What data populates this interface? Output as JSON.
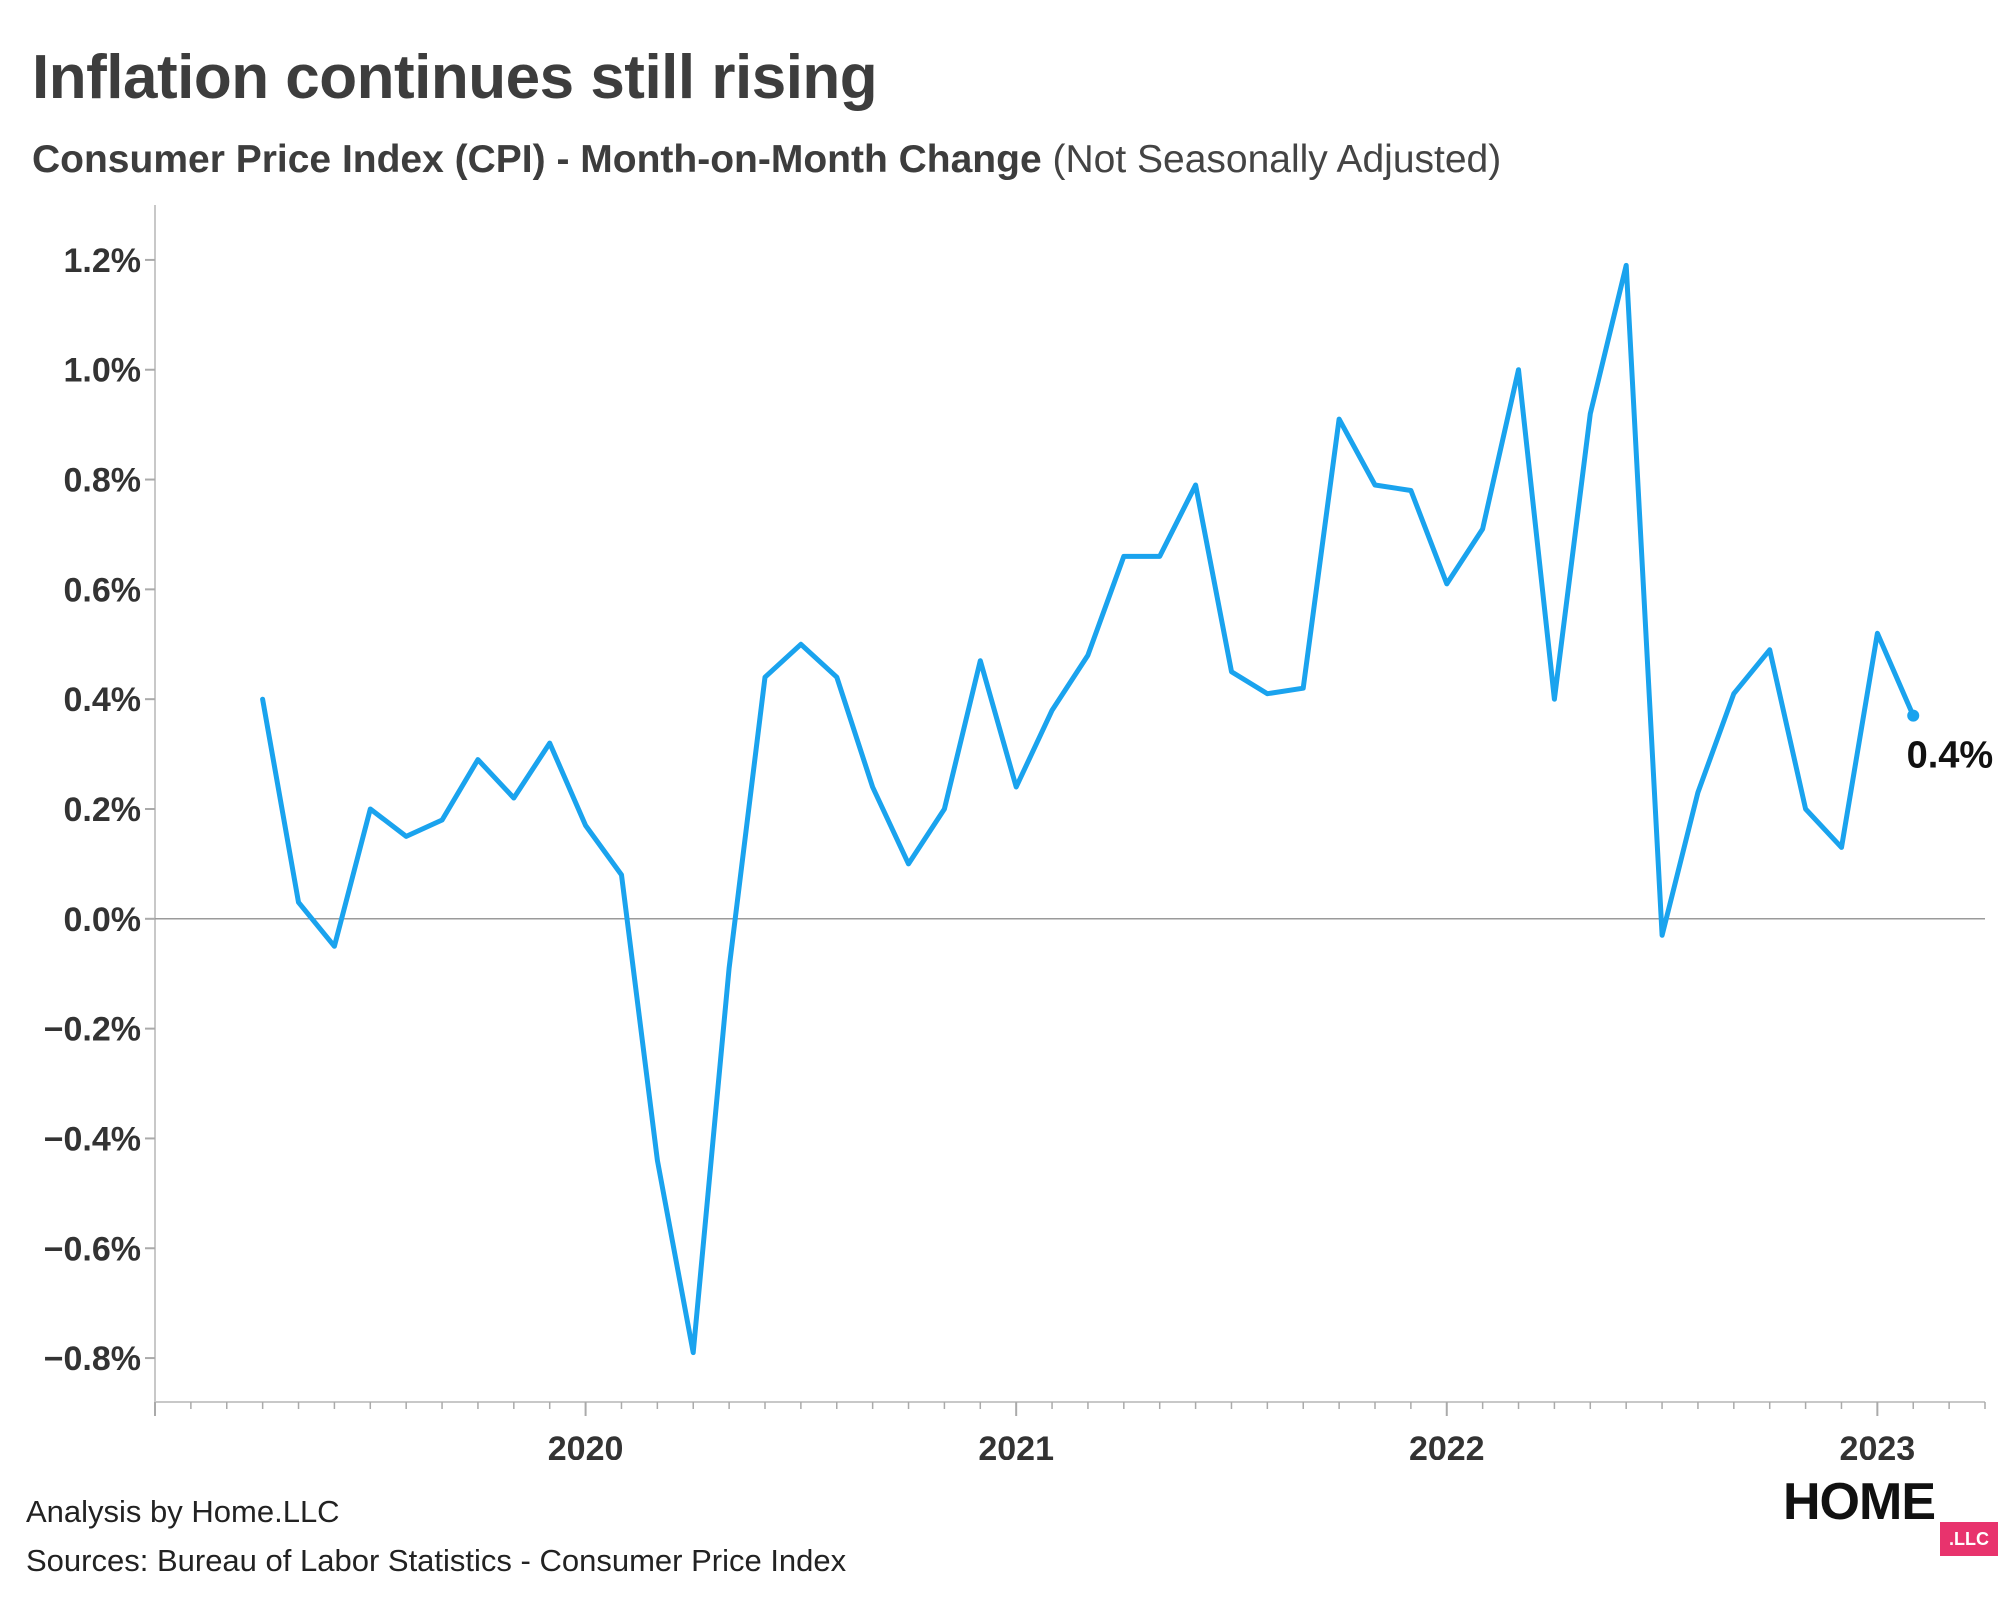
{
  "title": "Inflation continues still rising",
  "subtitle": {
    "main": "Consumer Price Index (CPI) - Month-on-Month Change",
    "qualifier": "(Not Seasonally Adjusted)"
  },
  "footer": {
    "analysis": "Analysis by Home.LLC",
    "sources": "Sources: Bureau of Labor Statistics - Consumer Price Index"
  },
  "logo": {
    "word": "HOME",
    "badge": ".LLC",
    "badge_color": "#e8336d"
  },
  "chart_data": {
    "type": "line",
    "ylim": [
      -0.88,
      1.3
    ],
    "y_ticks": [
      1.2,
      1.0,
      0.8,
      0.6,
      0.4,
      0.2,
      0.0,
      -0.2,
      -0.4,
      -0.6,
      -0.8
    ],
    "y_tick_labels": [
      "1.2%",
      "1.0%",
      "0.8%",
      "0.6%",
      "0.4%",
      "0.2%",
      "0.0%",
      "−0.2%",
      "−0.4%",
      "−0.6%",
      "−0.8%"
    ],
    "x_range": [
      "2019-01",
      "2023-04"
    ],
    "x_ticks": [
      "2020-01",
      "2021-01",
      "2022-01",
      "2023-01"
    ],
    "x_tick_labels": [
      "2020",
      "2021",
      "2022",
      "2023"
    ],
    "line_color": "#1aa3ee",
    "end_label": "0.4%",
    "series": [
      {
        "x": [
          "2019-04",
          "2019-05",
          "2019-06",
          "2019-07",
          "2019-08",
          "2019-09",
          "2019-10",
          "2019-11",
          "2019-12",
          "2020-01",
          "2020-02",
          "2020-03",
          "2020-04",
          "2020-05",
          "2020-06",
          "2020-07",
          "2020-08",
          "2020-09",
          "2020-10",
          "2020-11",
          "2020-12",
          "2021-01",
          "2021-02",
          "2021-03",
          "2021-04",
          "2021-05",
          "2021-06",
          "2021-07",
          "2021-08",
          "2021-09",
          "2021-10",
          "2021-11",
          "2021-12",
          "2022-01",
          "2022-02",
          "2022-03",
          "2022-04",
          "2022-05",
          "2022-06",
          "2022-07",
          "2022-08",
          "2022-09",
          "2022-10",
          "2022-11",
          "2022-12",
          "2023-01",
          "2023-02"
        ],
        "values": [
          0.4,
          0.03,
          -0.05,
          0.2,
          0.15,
          0.18,
          0.29,
          0.22,
          0.32,
          0.17,
          0.08,
          -0.44,
          -0.79,
          -0.09,
          0.44,
          0.5,
          0.44,
          0.24,
          0.1,
          0.2,
          0.47,
          0.24,
          0.38,
          0.48,
          0.66,
          0.66,
          0.79,
          0.45,
          0.41,
          0.42,
          0.91,
          0.79,
          0.78,
          0.61,
          0.71,
          1.0,
          0.4,
          0.92,
          1.19,
          -0.03,
          0.23,
          0.41,
          0.49,
          0.2,
          0.13,
          0.52,
          0.37
        ]
      }
    ]
  }
}
